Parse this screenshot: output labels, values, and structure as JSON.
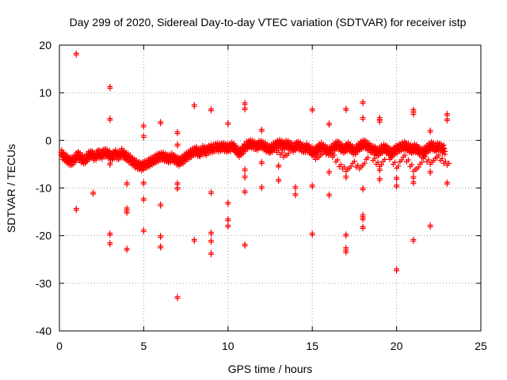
{
  "chart_data": {
    "type": "scatter",
    "title": "Day 299 of 2020, Sidereal Day-to-day VTEC variation (SDTVAR) for receiver istp",
    "xlabel": "GPS time / hours",
    "ylabel": "SDTVAR / TECUs",
    "xlim": [
      0,
      25
    ],
    "ylim": [
      -40,
      20
    ],
    "x_ticks": [
      0,
      5,
      10,
      15,
      20,
      25
    ],
    "y_ticks": [
      -40,
      -30,
      -20,
      -10,
      0,
      10,
      20
    ],
    "x_tick_labels": [
      "0",
      "5",
      "10",
      "15",
      "20",
      "25"
    ],
    "y_tick_labels": [
      "-40",
      "-30",
      "-20",
      "-10",
      "0",
      "10",
      "20"
    ],
    "grid": true,
    "marker": "+",
    "series": [
      {
        "name": "SDTVAR",
        "color": "#ff0000",
        "band": [
          [
            0.1,
            -2.5
          ],
          [
            0.3,
            -3.2
          ],
          [
            0.5,
            -3.8
          ],
          [
            0.7,
            -4.2
          ],
          [
            0.9,
            -3.6
          ],
          [
            1.1,
            -2.8
          ],
          [
            1.3,
            -3.5
          ],
          [
            1.5,
            -3.9
          ],
          [
            1.7,
            -3.0
          ],
          [
            1.9,
            -2.6
          ],
          [
            2.1,
            -3.2
          ],
          [
            2.3,
            -2.4
          ],
          [
            2.5,
            -2.8
          ],
          [
            2.7,
            -2.2
          ],
          [
            2.9,
            -2.6
          ],
          [
            3.1,
            -3.1
          ],
          [
            3.3,
            -2.5
          ],
          [
            3.5,
            -3.0
          ],
          [
            3.7,
            -2.3
          ],
          [
            3.9,
            -2.9
          ],
          [
            4.1,
            -3.4
          ],
          [
            4.3,
            -4.0
          ],
          [
            4.5,
            -4.6
          ],
          [
            4.7,
            -5.0
          ],
          [
            4.9,
            -5.2
          ],
          [
            5.1,
            -4.8
          ],
          [
            5.3,
            -4.4
          ],
          [
            5.5,
            -4.0
          ],
          [
            5.7,
            -3.6
          ],
          [
            5.9,
            -3.2
          ],
          [
            6.1,
            -3.0
          ],
          [
            6.3,
            -3.3
          ],
          [
            6.5,
            -3.6
          ],
          [
            6.7,
            -3.2
          ],
          [
            6.9,
            -3.8
          ],
          [
            7.1,
            -4.2
          ],
          [
            7.3,
            -3.8
          ],
          [
            7.5,
            -3.2
          ],
          [
            7.7,
            -2.7
          ],
          [
            7.9,
            -2.2
          ],
          [
            8.1,
            -1.8
          ],
          [
            8.3,
            -2.4
          ],
          [
            8.5,
            -1.7
          ],
          [
            8.7,
            -2.0
          ],
          [
            8.9,
            -1.5
          ],
          [
            9.1,
            -1.4
          ],
          [
            9.3,
            -1.1
          ],
          [
            9.5,
            -1.2
          ],
          [
            9.7,
            -1.0
          ],
          [
            9.9,
            -1.3
          ],
          [
            10.1,
            -1.2
          ],
          [
            10.3,
            -0.9
          ],
          [
            10.5,
            -1.8
          ],
          [
            10.7,
            -2.4
          ],
          [
            10.9,
            -1.6
          ],
          [
            11.1,
            -0.8
          ],
          [
            11.3,
            -0.4
          ],
          [
            11.5,
            -0.6
          ],
          [
            11.7,
            -1.0
          ],
          [
            11.9,
            -0.5
          ],
          [
            12.1,
            -0.8
          ],
          [
            12.3,
            -1.3
          ],
          [
            12.5,
            -1.6
          ],
          [
            12.7,
            -1.1
          ],
          [
            12.9,
            -0.6
          ],
          [
            13.1,
            -0.4
          ],
          [
            13.3,
            -0.8
          ],
          [
            13.5,
            -0.5
          ],
          [
            13.7,
            -0.9
          ],
          [
            13.9,
            -1.3
          ],
          [
            14.1,
            -0.7
          ],
          [
            14.3,
            -1.0
          ],
          [
            14.5,
            -1.5
          ],
          [
            14.7,
            -1.2
          ],
          [
            14.9,
            -1.8
          ],
          [
            15.1,
            -2.2
          ],
          [
            15.3,
            -1.6
          ],
          [
            15.5,
            -1.0
          ],
          [
            15.7,
            -1.4
          ],
          [
            15.9,
            -2.0
          ],
          [
            16.1,
            -1.8
          ],
          [
            16.3,
            -1.1
          ],
          [
            16.5,
            -0.6
          ],
          [
            16.7,
            -1.2
          ],
          [
            16.9,
            -1.6
          ],
          [
            17.1,
            -0.9
          ],
          [
            17.3,
            -1.4
          ],
          [
            17.5,
            -2.0
          ],
          [
            17.7,
            -1.3
          ],
          [
            17.9,
            -0.7
          ],
          [
            18.1,
            -0.4
          ],
          [
            18.3,
            -1.0
          ],
          [
            18.5,
            -1.5
          ],
          [
            18.7,
            -1.8
          ],
          [
            18.9,
            -2.2
          ],
          [
            19.1,
            -1.6
          ],
          [
            19.3,
            -1.3
          ],
          [
            19.5,
            -1.9
          ],
          [
            19.7,
            -2.4
          ],
          [
            19.9,
            -1.8
          ],
          [
            20.1,
            -1.4
          ],
          [
            20.3,
            -1.0
          ],
          [
            20.5,
            -0.8
          ],
          [
            20.7,
            -1.2
          ],
          [
            20.9,
            -1.6
          ],
          [
            21.1,
            -1.3
          ],
          [
            21.3,
            -1.7
          ],
          [
            21.5,
            -2.4
          ],
          [
            21.7,
            -1.9
          ],
          [
            21.9,
            -1.2
          ],
          [
            22.1,
            -0.8
          ],
          [
            22.3,
            -1.3
          ],
          [
            22.5,
            -1.0
          ],
          [
            22.7,
            -1.4
          ],
          [
            22.9,
            -1.8
          ]
        ],
        "lower_arcs": [
          [
            12.9,
            -2.5
          ],
          [
            13.1,
            -3.0
          ],
          [
            13.3,
            -3.5
          ],
          [
            13.5,
            -3.1
          ],
          [
            15.0,
            -3.2
          ],
          [
            15.2,
            -4.0
          ],
          [
            15.4,
            -3.5
          ],
          [
            15.6,
            -2.8
          ],
          [
            16.2,
            -3.5
          ],
          [
            16.4,
            -4.5
          ],
          [
            16.6,
            -5.5
          ],
          [
            16.8,
            -6.0
          ],
          [
            17.0,
            -6.5
          ],
          [
            17.2,
            -5.8
          ],
          [
            17.4,
            -4.8
          ],
          [
            17.6,
            -5.6
          ],
          [
            17.8,
            -6.0
          ],
          [
            18.0,
            -5.2
          ],
          [
            18.2,
            -4.0
          ],
          [
            18.6,
            -4.2
          ],
          [
            18.8,
            -5.0
          ],
          [
            19.0,
            -5.5
          ],
          [
            19.2,
            -4.4
          ],
          [
            19.6,
            -4.0
          ],
          [
            19.8,
            -5.0
          ],
          [
            20.0,
            -5.8
          ],
          [
            20.2,
            -4.5
          ],
          [
            20.4,
            -3.5
          ],
          [
            20.6,
            -4.5
          ],
          [
            20.8,
            -5.5
          ],
          [
            21.0,
            -6.5
          ],
          [
            21.2,
            -6.0
          ],
          [
            21.4,
            -5.0
          ],
          [
            21.6,
            -3.8
          ],
          [
            21.8,
            -4.5
          ],
          [
            22.0,
            -5.0
          ],
          [
            22.2,
            -4.2
          ],
          [
            22.4,
            -3.5
          ],
          [
            22.6,
            -4.2
          ],
          [
            22.8,
            -4.8
          ],
          [
            23.0,
            -5.2
          ]
        ],
        "outliers": [
          [
            1.0,
            18.3
          ],
          [
            3.0,
            11.3
          ],
          [
            3.0,
            4.6
          ],
          [
            5.0,
            3.2
          ],
          [
            5.0,
            1.0
          ],
          [
            6.0,
            3.9
          ],
          [
            7.0,
            1.8
          ],
          [
            7.0,
            -0.8
          ],
          [
            8.0,
            7.5
          ],
          [
            9.0,
            6.6
          ],
          [
            10.0,
            3.7
          ],
          [
            11.0,
            7.9
          ],
          [
            11.0,
            6.8
          ],
          [
            12.0,
            2.3
          ],
          [
            15.0,
            6.6
          ],
          [
            16.0,
            3.6
          ],
          [
            17.0,
            6.7
          ],
          [
            18.0,
            8.1
          ],
          [
            18.0,
            4.8
          ],
          [
            19.0,
            4.8
          ],
          [
            19.0,
            4.2
          ],
          [
            21.0,
            6.5
          ],
          [
            21.0,
            5.8
          ],
          [
            22.0,
            2.1
          ],
          [
            23.0,
            5.6
          ],
          [
            23.0,
            4.5
          ],
          [
            3.0,
            -4.8
          ],
          [
            11.0,
            -6.0
          ],
          [
            12.0,
            -4.5
          ],
          [
            16.0,
            -6.5
          ],
          [
            19.0,
            -6.0
          ],
          [
            19.0,
            -8.0
          ],
          [
            10.0,
            -13.0
          ],
          [
            1.0,
            -14.3
          ],
          [
            2.0,
            -10.9
          ],
          [
            4.0,
            -8.9
          ],
          [
            4.0,
            -14.2
          ],
          [
            4.0,
            -14.9
          ],
          [
            5.0,
            -8.8
          ],
          [
            5.0,
            -12.2
          ],
          [
            6.0,
            -13.4
          ],
          [
            7.0,
            -8.9
          ],
          [
            7.0,
            -9.9
          ],
          [
            9.0,
            -10.8
          ],
          [
            10.0,
            -16.5
          ],
          [
            10.0,
            -17.8
          ],
          [
            11.0,
            -10.6
          ],
          [
            11.0,
            -7.5
          ],
          [
            12.0,
            -9.7
          ],
          [
            13.0,
            -8.2
          ],
          [
            13.0,
            -5.2
          ],
          [
            14.0,
            -9.7
          ],
          [
            14.0,
            -11.2
          ],
          [
            15.0,
            -9.4
          ],
          [
            16.0,
            -11.3
          ],
          [
            17.0,
            -7.5
          ],
          [
            18.0,
            -10.0
          ],
          [
            18.0,
            -15.6
          ],
          [
            18.0,
            -16.3
          ],
          [
            18.0,
            -18.1
          ],
          [
            20.0,
            -9.4
          ],
          [
            20.0,
            -7.8
          ],
          [
            21.0,
            -7.6
          ],
          [
            21.0,
            -8.7
          ],
          [
            22.0,
            -6.5
          ],
          [
            23.0,
            -8.8
          ],
          [
            3.0,
            -19.5
          ],
          [
            3.0,
            -21.5
          ],
          [
            4.0,
            -22.7
          ],
          [
            5.0,
            -18.8
          ],
          [
            6.0,
            -20.0
          ],
          [
            6.0,
            -22.2
          ],
          [
            8.0,
            -20.8
          ],
          [
            9.0,
            -19.3
          ],
          [
            9.0,
            -21.0
          ],
          [
            9.0,
            -23.6
          ],
          [
            11.0,
            -21.8
          ],
          [
            15.0,
            -19.5
          ],
          [
            17.0,
            -19.7
          ],
          [
            17.0,
            -22.5
          ],
          [
            17.0,
            -23.2
          ],
          [
            21.0,
            -20.8
          ],
          [
            22.0,
            -17.8
          ],
          [
            20.0,
            -27.0
          ],
          [
            7.0,
            -32.8
          ]
        ]
      }
    ]
  }
}
